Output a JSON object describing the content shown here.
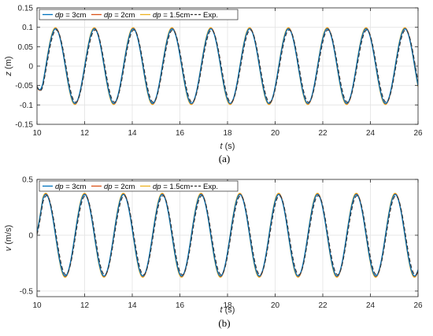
{
  "chart_data": [
    {
      "type": "line",
      "panel_label": "(a)",
      "xlabel_var": "t",
      "xlabel_unit": " (s)",
      "ylabel_var": "z",
      "ylabel_unit": " (m)",
      "xlim": [
        10,
        26
      ],
      "ylim": [
        -0.15,
        0.15
      ],
      "xticks": [
        10,
        12,
        14,
        16,
        18,
        20,
        22,
        24,
        26
      ],
      "yticks": [
        -0.15,
        -0.1,
        -0.05,
        0,
        0.05,
        0.1,
        0.15
      ],
      "ytick_labels": [
        "-0.15",
        "-0.1",
        "-0.05",
        "0",
        "0.05",
        "0.1",
        "0.15"
      ],
      "grid": true,
      "legend_placement": "top, inside, horizontal",
      "signal": {
        "form": "sine",
        "amplitude": 0.096,
        "period_s": 1.63,
        "peak_time_s": 10.78,
        "exp_phase_lag_s": 0.03
      },
      "series": [
        {
          "name_var": "dp",
          "name_rest": " = 3cm",
          "color": "#0072BD",
          "style": "solid"
        },
        {
          "name_var": "dp",
          "name_rest": " = 2cm",
          "color": "#D95319",
          "style": "solid"
        },
        {
          "name_var": "dp",
          "name_rest": " = 1.5cm",
          "color": "#EDB120",
          "style": "solid"
        },
        {
          "name_var": "",
          "name_rest": "Exp.",
          "color": "#333333",
          "style": "dashed"
        }
      ]
    },
    {
      "type": "line",
      "panel_label": "(b)",
      "xlabel_var": "t",
      "xlabel_unit": " (s)",
      "ylabel_var": "v",
      "ylabel_unit": " (m/s)",
      "xlim": [
        10,
        26
      ],
      "ylim": [
        -0.55,
        0.5
      ],
      "xticks": [
        10,
        12,
        14,
        16,
        18,
        20,
        22,
        24,
        26
      ],
      "yticks": [
        -0.5,
        0,
        0.5
      ],
      "ytick_labels": [
        "-0.5",
        "0",
        "0.5"
      ],
      "grid": true,
      "legend_placement": "top, inside, horizontal",
      "signal": {
        "form": "sine",
        "amplitude": 0.365,
        "period_s": 1.63,
        "peak_time_s": 10.37,
        "exp_phase_lag_s": 0.03
      },
      "series": [
        {
          "name_var": "dp",
          "name_rest": " = 3cm",
          "color": "#0072BD",
          "style": "solid"
        },
        {
          "name_var": "dp",
          "name_rest": " = 2cm",
          "color": "#D95319",
          "style": "solid"
        },
        {
          "name_var": "dp",
          "name_rest": " = 1.5cm",
          "color": "#EDB120",
          "style": "solid"
        },
        {
          "name_var": "",
          "name_rest": "Exp.",
          "color": "#333333",
          "style": "dashed"
        }
      ]
    }
  ]
}
